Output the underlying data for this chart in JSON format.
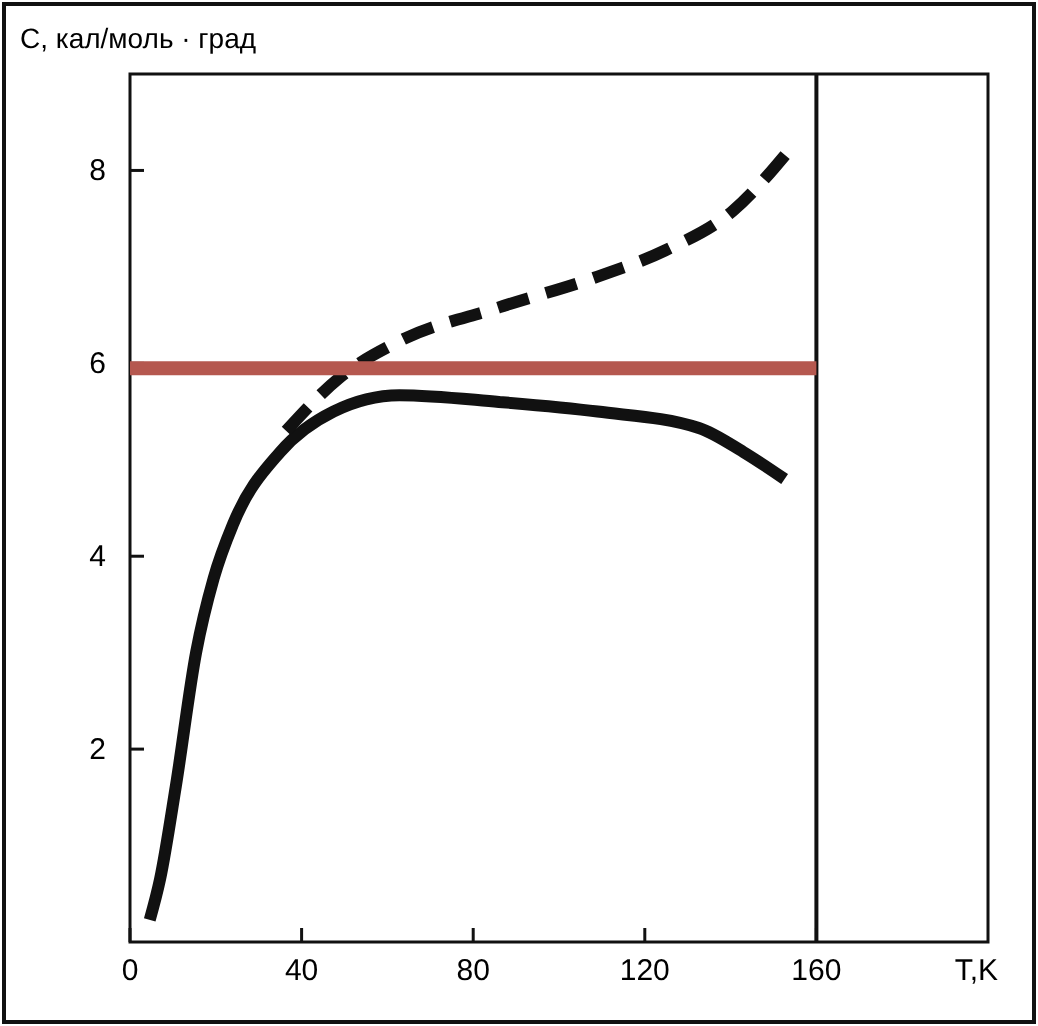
{
  "chart_data": {
    "type": "line",
    "ylabel": "С, кал/моль · град",
    "xlabel": "T,K",
    "xlim": [
      0,
      200
    ],
    "ylim": [
      0,
      9
    ],
    "xticks": [
      0,
      40,
      80,
      120,
      160
    ],
    "yticks": [
      2,
      4,
      6,
      8
    ],
    "series": [
      {
        "color": "#111111",
        "line_style": "solid",
        "x": [
          4.6,
          7,
          10.7,
          15.4,
          19.5,
          24,
          35,
          47.4,
          62.8,
          86,
          109,
          132.6,
          143,
          152.6
        ],
        "values": [
          0.23,
          0.65,
          1.62,
          3.0,
          3.77,
          4.33,
          5.08,
          5.5,
          5.67,
          5.6,
          5.5,
          5.33,
          5.08,
          4.8
        ]
      },
      {
        "color": "#111111",
        "line_style": "dashed",
        "x": [
          36.4,
          48.8,
          62.8,
          86,
          109,
          124.7,
          140.5,
          154.4
        ],
        "values": [
          5.3,
          5.85,
          6.23,
          6.58,
          6.9,
          7.17,
          7.58,
          8.25
        ]
      },
      {
        "color": "#b5584f",
        "line_style": "solid",
        "x": [
          0,
          160
        ],
        "values": [
          5.95,
          5.95
        ]
      }
    ],
    "ref_lines": [
      {
        "axis": "x",
        "value": 160,
        "color": "#111111"
      }
    ]
  }
}
